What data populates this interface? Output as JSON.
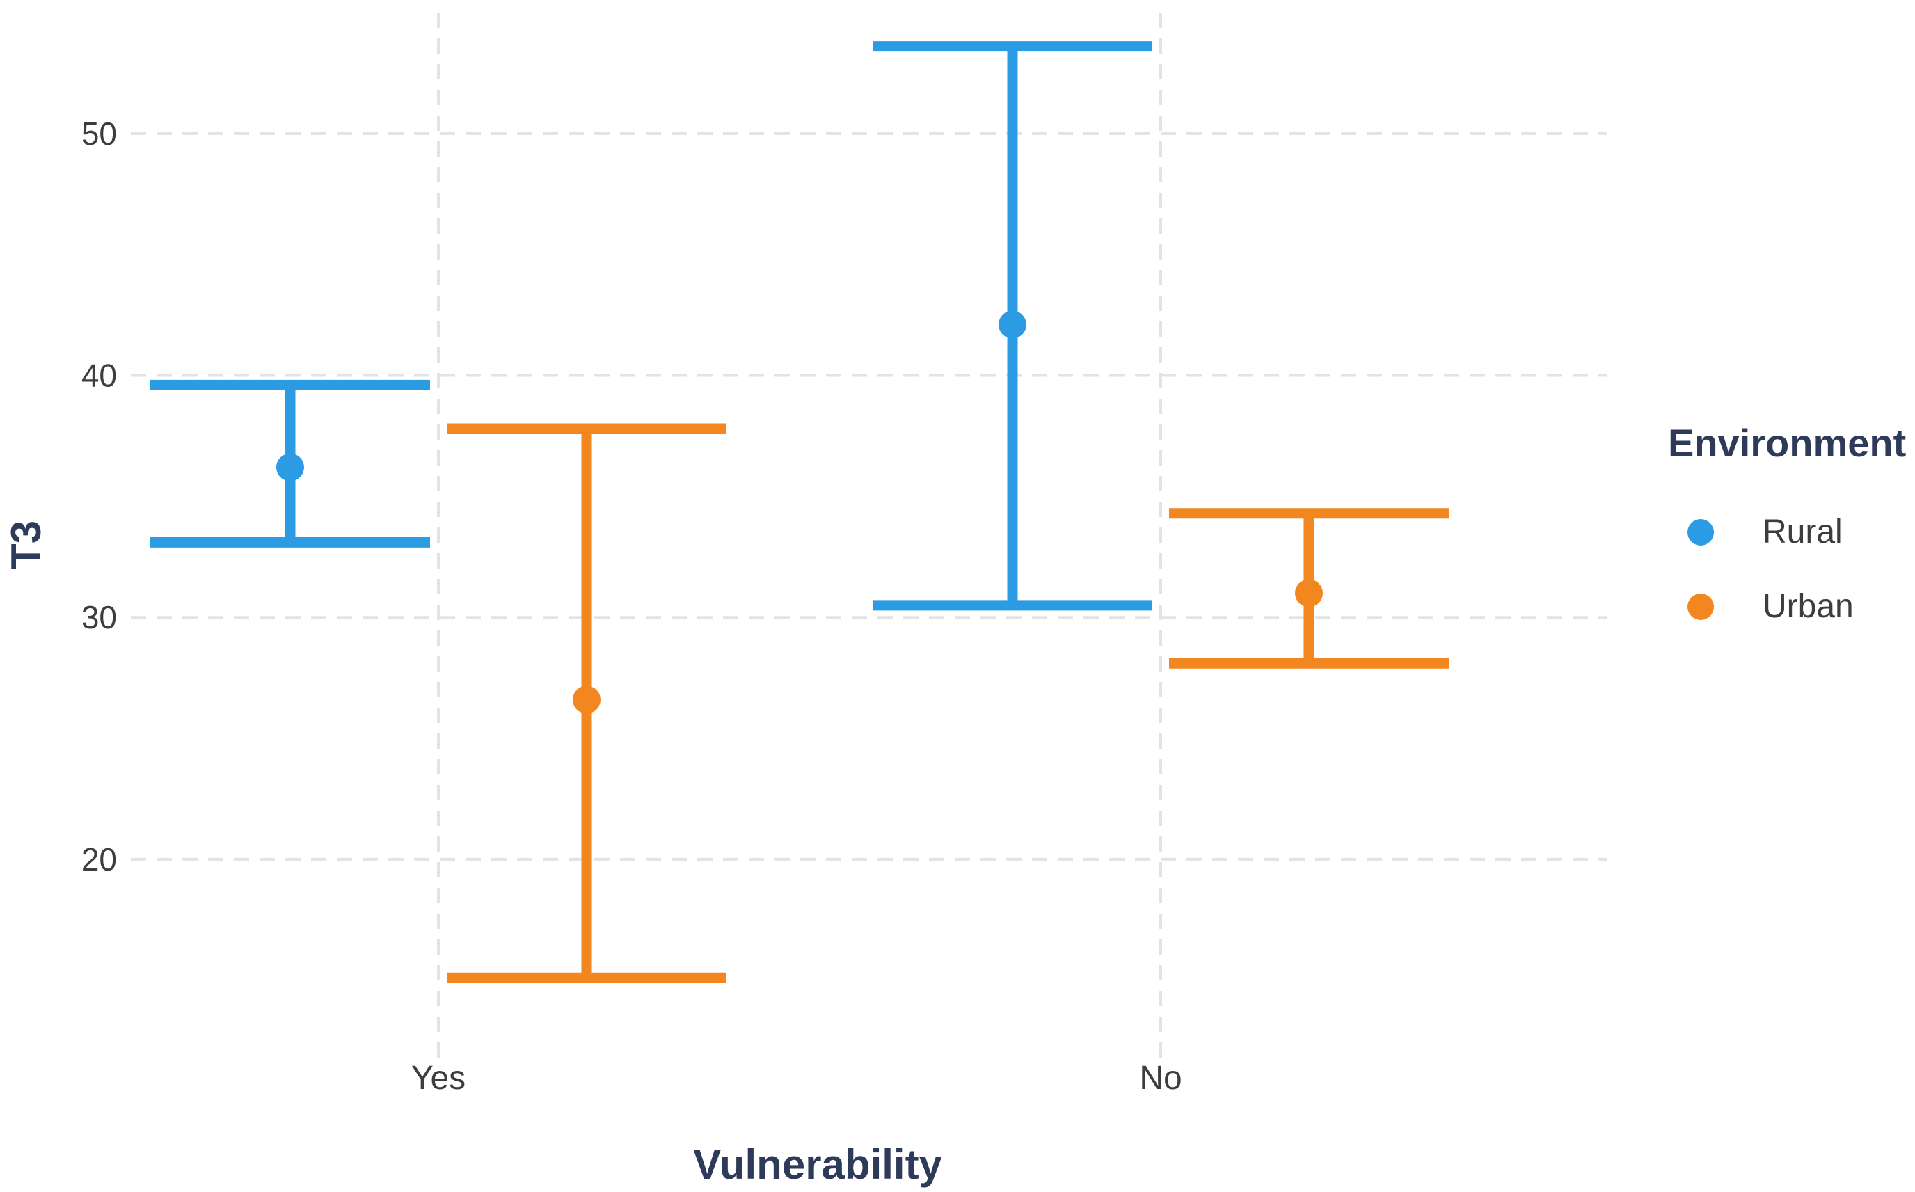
{
  "chart_data": {
    "type": "pointrange",
    "title": "",
    "xlabel": "Vulnerability",
    "ylabel": "T3",
    "categories": [
      "Yes",
      "No"
    ],
    "yticks": [
      20,
      30,
      40,
      50
    ],
    "ylim": [
      11.8,
      55.0
    ],
    "grid": {
      "horizontal": true,
      "vertical": true,
      "line_style": "dashed",
      "color": "#E3E3E3"
    },
    "legend": {
      "title": "Environment",
      "position": "right"
    },
    "series": [
      {
        "name": "Rural",
        "color": "#2B9CE4",
        "points": [
          {
            "category": "Yes",
            "y": 36.2,
            "ymin": 33.1,
            "ymax": 39.6
          },
          {
            "category": "No",
            "y": 42.1,
            "ymin": 30.5,
            "ymax": 53.6
          }
        ]
      },
      {
        "name": "Urban",
        "color": "#F2861F",
        "points": [
          {
            "category": "Yes",
            "y": 26.6,
            "ymin": 15.1,
            "ymax": 37.8
          },
          {
            "category": "No",
            "y": 31.0,
            "ymin": 28.1,
            "ymax": 34.3
          }
        ]
      }
    ],
    "text_colors": {
      "axis_title": "#2E3A59",
      "tick_label": "#3D3D3D",
      "legend_title": "#2E3A59",
      "legend_label": "#3D3D3D"
    }
  }
}
